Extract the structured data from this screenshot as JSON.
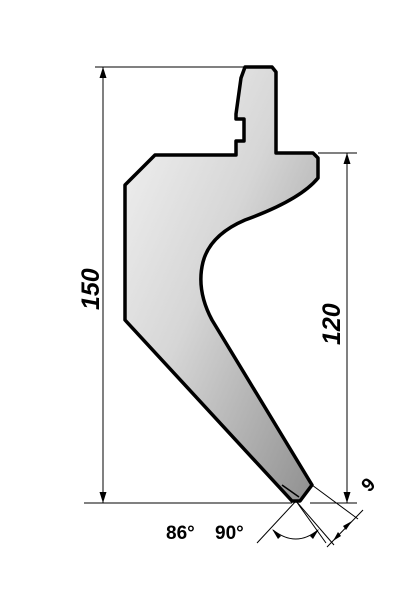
{
  "drawing": {
    "dimensions": {
      "total_height": "150",
      "working_height": "120",
      "tip_width": "9",
      "tip_angle_1": "86°",
      "tip_angle_2": "90°"
    },
    "colors": {
      "outline": "#000000",
      "fill_light": "#f2f2f2",
      "fill_dark": "#9a9a9a",
      "background": "#ffffff"
    }
  }
}
